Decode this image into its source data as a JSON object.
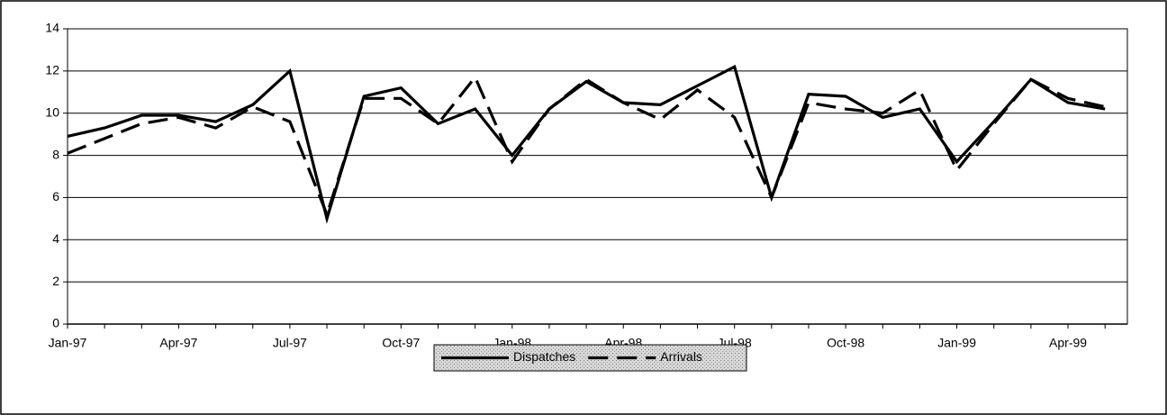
{
  "chart_data": {
    "type": "line",
    "categories": [
      "Jan-97",
      null,
      null,
      "Apr-97",
      null,
      null,
      "Jul-97",
      null,
      null,
      "Oct-97",
      null,
      null,
      "Jan-98",
      null,
      null,
      "Apr-98",
      null,
      null,
      "Jul-98",
      null,
      null,
      "Oct-98",
      null,
      null,
      "Jan-99",
      null,
      null,
      "Apr-99",
      null
    ],
    "series": [
      {
        "name": "Dispatches",
        "color": "#000000",
        "line_style": "solid",
        "values": [
          8.9,
          9.3,
          9.9,
          9.9,
          9.6,
          10.4,
          12.0,
          5.0,
          10.8,
          11.2,
          9.5,
          10.2,
          8.0,
          10.2,
          11.5,
          10.5,
          10.4,
          11.3,
          12.2,
          6.0,
          10.9,
          10.8,
          9.8,
          10.2,
          7.7,
          9.6,
          11.6,
          10.5,
          10.2
        ]
      },
      {
        "name": "Arrivals",
        "color": "#000000",
        "line_style": "dashed",
        "values": [
          8.1,
          8.8,
          9.5,
          9.8,
          9.3,
          10.3,
          9.6,
          5.2,
          10.7,
          10.7,
          9.5,
          11.7,
          7.7,
          10.2,
          11.6,
          10.5,
          9.7,
          11.1,
          9.8,
          6.0,
          10.5,
          10.2,
          10.0,
          11.1,
          7.3,
          9.5,
          11.6,
          10.7,
          10.3
        ]
      }
    ],
    "ylim": [
      0,
      14
    ],
    "yticks": [
      0,
      2,
      4,
      6,
      8,
      10,
      12,
      14
    ],
    "grid": true,
    "legend": "bottom"
  }
}
